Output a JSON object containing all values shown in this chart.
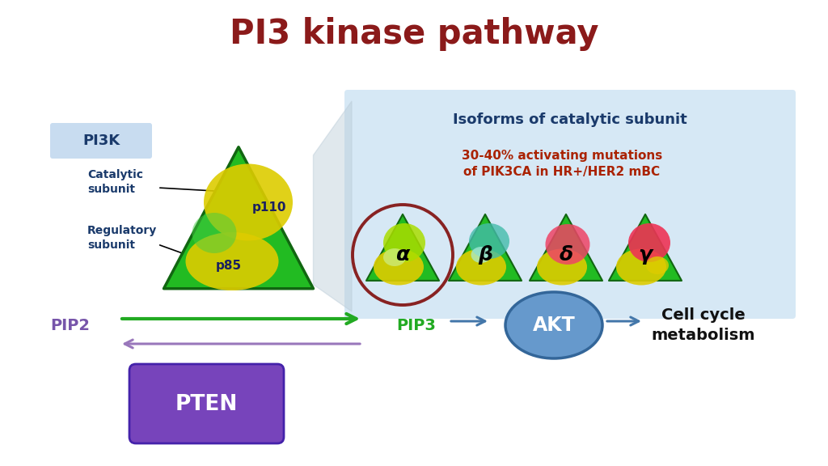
{
  "title": "PI3 kinase pathway",
  "title_color": "#8B1A1A",
  "title_fontsize": 30,
  "bg_color": "#FFFFFF",
  "isoforms_box_color": "#D6E8F5",
  "isoforms_title": "Isoforms of catalytic subunit",
  "isoforms_title_color": "#1a3a6b",
  "mutation_line1": "30-40% activating mutations",
  "mutation_line2": "of PIK3CA in HR+/HER2 mBC",
  "mutation_color": "#AA2200",
  "pi3k_box_color": "#C8DCF0",
  "pi3k_label": "PI3K",
  "pi3k_label_color": "#1a3a6b",
  "catalytic_label": "Catalytic\nsubunit",
  "regulatory_label": "Regulatory\nsubunit",
  "subunit_color": "#1a3a6b",
  "p110_label": "p110",
  "p85_label": "p85",
  "pip2_label": "PIP2",
  "pip2_color": "#7755AA",
  "pip3_label": "PIP3",
  "pip3_color": "#22AA22",
  "akt_label": "AKT",
  "akt_color": "#6699CC",
  "pten_label": "PTEN",
  "pten_color": "#7744BB",
  "cell_cycle_label": "Cell cycle\nmetabolism",
  "cell_cycle_color": "#111111",
  "arrow_green": "#22AA22",
  "arrow_purple": "#9977BB",
  "arrow_blue": "#4477AA",
  "isoform_labels": [
    "α",
    "β",
    "δ",
    "γ"
  ],
  "circle_highlight_color": "#882222",
  "large_tri_green": "#22BB22",
  "large_tri_edge": "#116611",
  "small_tri_green": "#22BB22",
  "small_tri_edge": "#116611",
  "yellow_upper": "#DDCC00",
  "yellow_lower": "#DDCC00",
  "fan_color": "#BBCCD8"
}
